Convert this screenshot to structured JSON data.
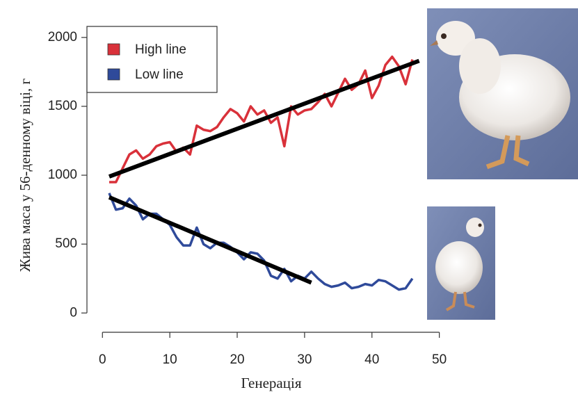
{
  "chart_data": {
    "type": "line",
    "y_label": "Жива маса у 56-денному віці, г",
    "x_label": "Генерація",
    "x": [
      1,
      2,
      3,
      4,
      5,
      6,
      7,
      8,
      9,
      10,
      11,
      12,
      13,
      14,
      15,
      16,
      17,
      18,
      19,
      20,
      21,
      22,
      23,
      24,
      25,
      26,
      27,
      28,
      29,
      30,
      31,
      32,
      33,
      34,
      35,
      36,
      37,
      38,
      39,
      40,
      41,
      42,
      43,
      44,
      45,
      46
    ],
    "series": [
      {
        "name": "High line",
        "color": "#d9313a",
        "values": [
          950,
          950,
          1050,
          1150,
          1180,
          1120,
          1150,
          1210,
          1230,
          1240,
          1170,
          1200,
          1150,
          1360,
          1330,
          1320,
          1350,
          1420,
          1480,
          1450,
          1390,
          1500,
          1440,
          1470,
          1380,
          1420,
          1210,
          1500,
          1440,
          1470,
          1480,
          1530,
          1590,
          1500,
          1600,
          1700,
          1620,
          1660,
          1760,
          1560,
          1650,
          1800,
          1860,
          1790,
          1660,
          1840
        ]
      },
      {
        "name": "Low line",
        "color": "#2f4a9a",
        "values": [
          870,
          750,
          760,
          830,
          780,
          680,
          720,
          720,
          680,
          640,
          550,
          490,
          490,
          620,
          500,
          470,
          510,
          510,
          480,
          440,
          390,
          440,
          430,
          380,
          270,
          250,
          320,
          230,
          270,
          250,
          300,
          250,
          210,
          190,
          200,
          220,
          180,
          190,
          210,
          200,
          240,
          230,
          200,
          170,
          180,
          250
        ]
      }
    ],
    "trend_lines": [
      {
        "color": "#000000",
        "x": [
          1,
          47
        ],
        "values": [
          990,
          1830
        ]
      },
      {
        "color": "#000000",
        "x": [
          1,
          31
        ],
        "values": [
          840,
          220
        ]
      }
    ],
    "xlim": [
      -2.3,
      52
    ],
    "ylim": [
      -140,
      2080
    ],
    "xticks": [
      0,
      10,
      20,
      30,
      40,
      50
    ],
    "yticks": [
      0,
      500,
      1000,
      1500,
      2000
    ],
    "legend": "top-left"
  }
}
